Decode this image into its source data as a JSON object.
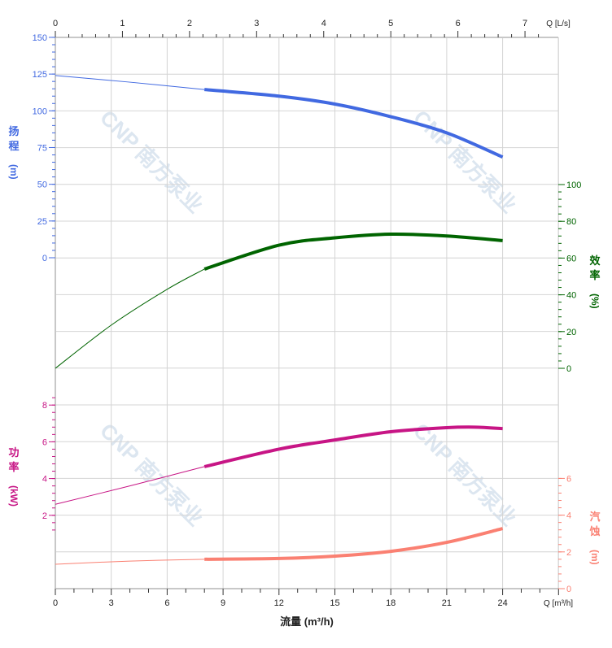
{
  "chart_data": {
    "type": "line",
    "xlabel": "流量 (m³/h)",
    "x_unit_label": "Q [m³/h]",
    "x_top_unit_label": "Q [L/s]",
    "xlim": [
      0,
      27
    ],
    "x_ticks": [
      0,
      3,
      6,
      9,
      12,
      15,
      18,
      21,
      24
    ],
    "x_top_ticks": [
      0,
      1,
      2,
      3,
      4,
      5,
      6,
      7
    ],
    "grid": true,
    "operating_range": [
      8,
      24
    ],
    "axes": {
      "head": {
        "label": [
          "扬",
          "程",
          "(m)"
        ],
        "ticks": [
          0,
          25,
          50,
          75,
          100,
          125,
          150
        ],
        "color": "#4169e1",
        "side": "left"
      },
      "efficiency": {
        "label": [
          "效",
          "率",
          "(%)"
        ],
        "ticks": [
          0,
          20,
          40,
          60,
          80,
          100
        ],
        "color": "#006400",
        "side": "right"
      },
      "power": {
        "label": [
          "功",
          "率",
          "(kW)"
        ],
        "ticks": [
          2,
          4,
          6,
          8
        ],
        "color": "#c71585",
        "side": "left"
      },
      "npsh": {
        "label": [
          "汽",
          "蚀",
          "(m)"
        ],
        "ticks": [
          0,
          2,
          4,
          6
        ],
        "color": "#fa8072",
        "side": "right"
      }
    },
    "series": [
      {
        "axis": "head",
        "x": [
          0,
          4,
          8,
          12,
          15,
          18,
          21,
          24
        ],
        "y": [
          124,
          119.5,
          114.5,
          110,
          104.6,
          96,
          85,
          68.5
        ]
      },
      {
        "axis": "efficiency",
        "x": [
          0,
          3,
          6,
          8,
          12,
          15,
          18,
          21,
          24
        ],
        "y": [
          0,
          23.5,
          43,
          54,
          67,
          71,
          73,
          72,
          69.5
        ]
      },
      {
        "axis": "power",
        "x": [
          0,
          4,
          8,
          12,
          15,
          18,
          21,
          22.5,
          24
        ],
        "y": [
          2.6,
          3.6,
          4.65,
          5.6,
          6.1,
          6.55,
          6.77,
          6.8,
          6.72
        ]
      },
      {
        "axis": "npsh",
        "x": [
          0,
          4,
          8,
          12,
          15,
          18,
          21,
          24
        ],
        "y": [
          1.33,
          1.5,
          1.6,
          1.64,
          1.77,
          2.03,
          2.52,
          3.27
        ]
      }
    ]
  },
  "watermark": {
    "text": "CNP 南方泵业"
  }
}
